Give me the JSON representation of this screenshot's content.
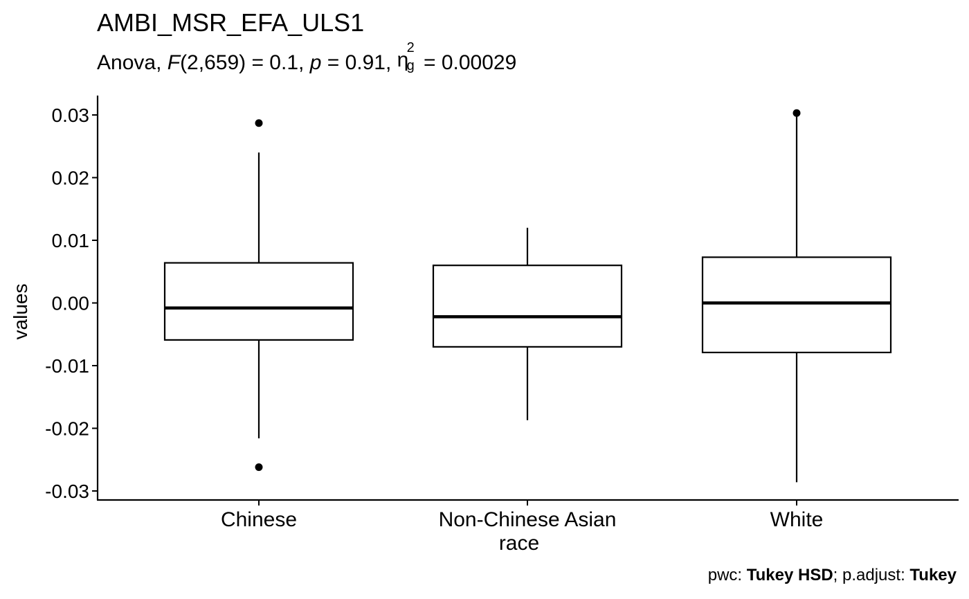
{
  "chart_data": {
    "type": "box",
    "title": "AMBI_MSR_EFA_ULS1",
    "subtitle": {
      "prefix": "Anova, ",
      "F_symbol": "F",
      "F_args": "(2,659) = 0.1, ",
      "p_symbol": "p",
      "p_value": " = 0.91, ",
      "eta_symbol": "η",
      "eta_sup": "2",
      "eta_sub": "g",
      "eta_value": " = 0.00029"
    },
    "xlabel": "race",
    "ylabel": "values",
    "ylim": [
      -0.0315,
      0.0335
    ],
    "yticks": [
      -0.03,
      -0.02,
      -0.01,
      0.0,
      0.01,
      0.02,
      0.03
    ],
    "ytick_labels": [
      "-0.03",
      "-0.02",
      "-0.01",
      "0.00",
      "0.01",
      "0.02",
      "0.03"
    ],
    "categories": [
      "Chinese",
      "Non-Chinese Asian",
      "White"
    ],
    "boxes": [
      {
        "category": "Chinese",
        "whisker_low": -0.0216,
        "q1": -0.0059,
        "median": -0.0008,
        "q3": 0.0064,
        "whisker_high": 0.024,
        "outliers": [
          0.0287,
          -0.0262
        ]
      },
      {
        "category": "Non-Chinese Asian",
        "whisker_low": -0.0187,
        "q1": -0.007,
        "median": -0.0022,
        "q3": 0.006,
        "whisker_high": 0.012,
        "outliers": []
      },
      {
        "category": "White",
        "whisker_low": -0.0286,
        "q1": -0.0079,
        "median": 0.0,
        "q3": 0.0073,
        "whisker_high": 0.0301,
        "outliers": [
          0.0303
        ]
      }
    ],
    "caption": {
      "pwc_label": "pwc: ",
      "pwc_method": "Tukey HSD",
      "sep": "; p.adjust: ",
      "adjust_method": "Tukey"
    },
    "grid": false,
    "legend": "none"
  }
}
